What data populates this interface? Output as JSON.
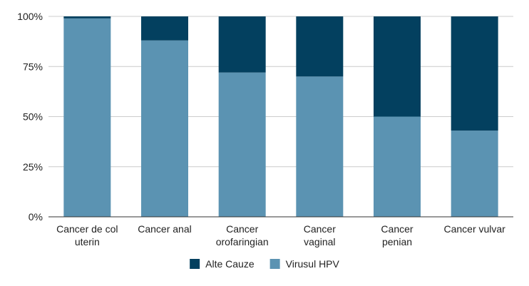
{
  "chart_data": {
    "type": "bar",
    "stacked": true,
    "categories": [
      [
        "Cancer de col",
        "uterin"
      ],
      [
        "Cancer anal"
      ],
      [
        "Cancer",
        "orofaringian"
      ],
      [
        "Cancer",
        "vaginal"
      ],
      [
        "Cancer",
        "penian"
      ],
      [
        "Cancer vulvar"
      ]
    ],
    "series": [
      {
        "name": "Virusul HPV",
        "color": "#5b93b2",
        "values": [
          99,
          88,
          72,
          70,
          50,
          43
        ]
      },
      {
        "name": "Alte Cauze",
        "color": "#03405f",
        "values": [
          1,
          12,
          28,
          30,
          50,
          57
        ]
      }
    ],
    "legend_order": [
      "Alte Cauze",
      "Virusul HPV"
    ],
    "legend_position": "bottom",
    "yticks": [
      "0%",
      "25%",
      "50%",
      "75%",
      "100%"
    ],
    "ylim": [
      0,
      100
    ],
    "grid": true
  }
}
